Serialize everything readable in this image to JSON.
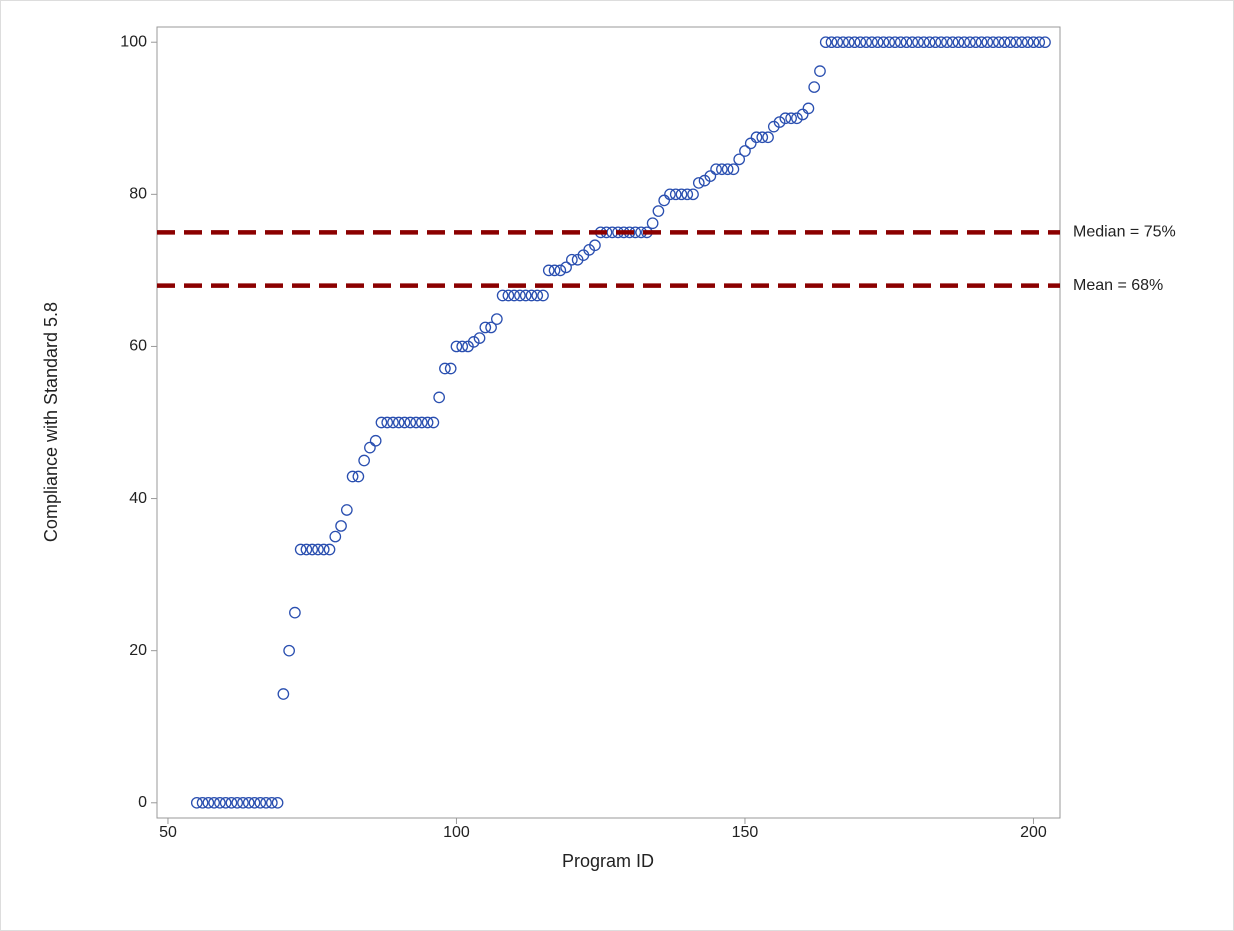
{
  "chart_data": {
    "type": "scatter",
    "x_label": "Program ID",
    "y_label": "Compliance with Standard 5.8",
    "xlim": [
      48.1,
      204.6
    ],
    "ylim": [
      -2,
      102
    ],
    "xticks": [
      50,
      100,
      150,
      200
    ],
    "yticks": [
      0,
      20,
      40,
      60,
      80,
      100
    ],
    "grid": false,
    "marker_color": "#2a4fb0",
    "reference_line_color": "#8b0000",
    "x": [
      55,
      56,
      57,
      58,
      59,
      60,
      61,
      62,
      63,
      64,
      65,
      66,
      67,
      68,
      69,
      70,
      71,
      72,
      73,
      74,
      75,
      76,
      77,
      78,
      79,
      80,
      81,
      82,
      83,
      84,
      85,
      86,
      87,
      88,
      89,
      90,
      91,
      92,
      93,
      94,
      95,
      96,
      97,
      98,
      99,
      100,
      101,
      102,
      103,
      104,
      105,
      106,
      107,
      108,
      109,
      110,
      111,
      112,
      113,
      114,
      115,
      116,
      117,
      118,
      119,
      120,
      121,
      122,
      123,
      124,
      125,
      126,
      127,
      128,
      129,
      130,
      131,
      132,
      133,
      134,
      135,
      136,
      137,
      138,
      139,
      140,
      141,
      142,
      143,
      144,
      145,
      146,
      147,
      148,
      149,
      150,
      151,
      152,
      153,
      154,
      155,
      156,
      157,
      158,
      159,
      160,
      161,
      162,
      163,
      164,
      165,
      166,
      167,
      168,
      169,
      170,
      171,
      172,
      173,
      174,
      175,
      176,
      177,
      178,
      179,
      180,
      181,
      182,
      183,
      184,
      185,
      186,
      187,
      188,
      189,
      190,
      191,
      192,
      193,
      194,
      195,
      196,
      197,
      198,
      199,
      200,
      201,
      202
    ],
    "values": [
      0,
      0,
      0,
      0,
      0,
      0,
      0,
      0,
      0,
      0,
      0,
      0,
      0,
      0,
      0,
      14.3,
      20,
      25,
      33.3,
      33.3,
      33.3,
      33.3,
      33.3,
      33.3,
      35,
      36.4,
      38.5,
      42.9,
      42.9,
      45,
      46.7,
      47.6,
      50,
      50,
      50,
      50,
      50,
      50,
      50,
      50,
      50,
      50,
      53.3,
      57.1,
      57.1,
      60,
      60,
      60,
      60.6,
      61.1,
      62.5,
      62.5,
      63.6,
      66.7,
      66.7,
      66.7,
      66.7,
      66.7,
      66.7,
      66.7,
      66.7,
      70,
      70,
      70,
      70.4,
      71.4,
      71.4,
      72,
      72.7,
      73.3,
      75,
      75,
      75,
      75,
      75,
      75,
      75,
      75,
      75,
      76.2,
      77.8,
      79.2,
      80,
      80,
      80,
      80,
      80,
      81.5,
      81.8,
      82.4,
      83.3,
      83.3,
      83.3,
      83.3,
      84.6,
      85.7,
      86.7,
      87.5,
      87.5,
      87.5,
      88.9,
      89.5,
      90,
      90,
      90,
      90.5,
      91.3,
      94.1,
      96.2,
      100,
      100,
      100,
      100,
      100,
      100,
      100,
      100,
      100,
      100,
      100,
      100,
      100,
      100,
      100,
      100,
      100,
      100,
      100,
      100,
      100,
      100,
      100,
      100,
      100,
      100,
      100,
      100,
      100,
      100,
      100,
      100,
      100,
      100,
      100,
      100,
      100,
      100,
      100
    ],
    "reference_lines": [
      {
        "value": 75,
        "label": "Median = 75%"
      },
      {
        "value": 68,
        "label": "Mean = 68%"
      }
    ]
  }
}
